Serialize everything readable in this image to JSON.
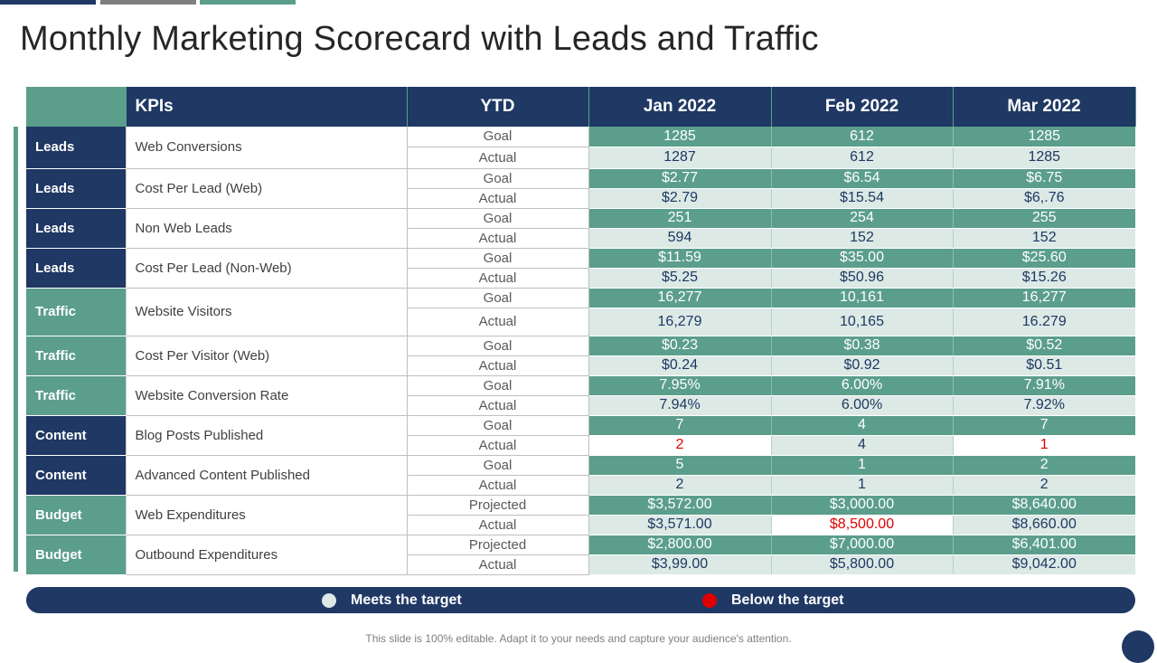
{
  "title": "Monthly Marketing Scorecard with Leads and Traffic",
  "header": {
    "kpis": "KPIs",
    "ytd": "YTD",
    "jan": "Jan 2022",
    "feb": "Feb 2022",
    "mar": "Mar 2022"
  },
  "colors": {
    "navy": "#1f3864",
    "green": "#5b9e8c",
    "light_green": "#dce9e5",
    "red": "#e00000"
  },
  "rows": [
    {
      "category": "Leads",
      "kpi": "Web Conversions",
      "goal": {
        "label": "Goal",
        "jan": "1285",
        "feb": "612",
        "mar": "1285"
      },
      "actual": {
        "label": "Actual",
        "jan": "1287",
        "feb": "612",
        "mar": "1285"
      }
    },
    {
      "category": "Leads",
      "kpi": "Cost Per Lead (Web)",
      "goal": {
        "label": "Goal",
        "jan": "$2.77",
        "feb": "$6.54",
        "mar": "$6.75"
      },
      "actual": {
        "label": "Actual",
        "jan": "$2.79",
        "feb": "$15.54",
        "mar": "$6,.76"
      }
    },
    {
      "category": "Leads",
      "kpi": "Non Web Leads",
      "goal": {
        "label": "Goal",
        "jan": "251",
        "feb": "254",
        "mar": "255"
      },
      "actual": {
        "label": "Actual",
        "jan": "594",
        "feb": "152",
        "mar": "152"
      }
    },
    {
      "category": "Leads",
      "kpi": "Cost Per Lead (Non-Web)",
      "goal": {
        "label": "Goal",
        "jan": "$11.59",
        "feb": "$35.00",
        "mar": "$25.60"
      },
      "actual": {
        "label": "Actual",
        "jan": "$5.25",
        "feb": "$50.96",
        "mar": "$15.26"
      }
    },
    {
      "category": "Traffic",
      "kpi": "Website Visitors",
      "goal": {
        "label": "Goal",
        "jan": "16,277",
        "feb": "10,161",
        "mar": "16,277"
      },
      "actual": {
        "label": "Actual",
        "jan": "16,279",
        "feb": "10,165",
        "mar": "16.279"
      }
    },
    {
      "category": "Traffic",
      "kpi": "Cost Per Visitor (Web)",
      "goal": {
        "label": "Goal",
        "jan": "$0.23",
        "feb": "$0.38",
        "mar": "$0.52"
      },
      "actual": {
        "label": "Actual",
        "jan": "$0.24",
        "feb": "$0.92",
        "mar": "$0.51"
      }
    },
    {
      "category": "Traffic",
      "kpi": "Website Conversion Rate",
      "goal": {
        "label": "Goal",
        "jan": "7.95%",
        "feb": "6.00%",
        "mar": "7.91%"
      },
      "actual": {
        "label": "Actual",
        "jan": "7.94%",
        "feb": "6.00%",
        "mar": "7.92%"
      }
    },
    {
      "category": "Content",
      "kpi": "Blog Posts Published",
      "goal": {
        "label": "Goal",
        "jan": "7",
        "feb": "4",
        "mar": "7"
      },
      "actual": {
        "label": "Actual",
        "jan": "2",
        "feb": "4",
        "mar": "1"
      }
    },
    {
      "category": "Content",
      "kpi": "Advanced Content Published",
      "goal": {
        "label": "Goal",
        "jan": "5",
        "feb": "1",
        "mar": "2"
      },
      "actual": {
        "label": "Actual",
        "jan": "2",
        "feb": "1",
        "mar": "2"
      }
    },
    {
      "category": "Budget",
      "kpi": "Web Expenditures",
      "goal": {
        "label": "Projected",
        "jan": "$3,572.00",
        "feb": "$3,000.00",
        "mar": "$8,640.00"
      },
      "actual": {
        "label": "Actual",
        "jan": "$3,571.00",
        "feb": "$8,500.00",
        "mar": "$8,660.00"
      }
    },
    {
      "category": "Budget",
      "kpi": "Outbound Expenditures",
      "goal": {
        "label": "Projected",
        "jan": "$2,800.00",
        "feb": "$7,000.00",
        "mar": "$6,401.00"
      },
      "actual": {
        "label": "Actual",
        "jan": "$3,99.00",
        "feb": "$5,800.00",
        "mar": "$9,042.00"
      }
    }
  ],
  "legend": {
    "meets": "Meets the target",
    "below": "Below the target"
  },
  "footer": "This slide is 100% editable. Adapt it to your needs and capture your audience's attention."
}
